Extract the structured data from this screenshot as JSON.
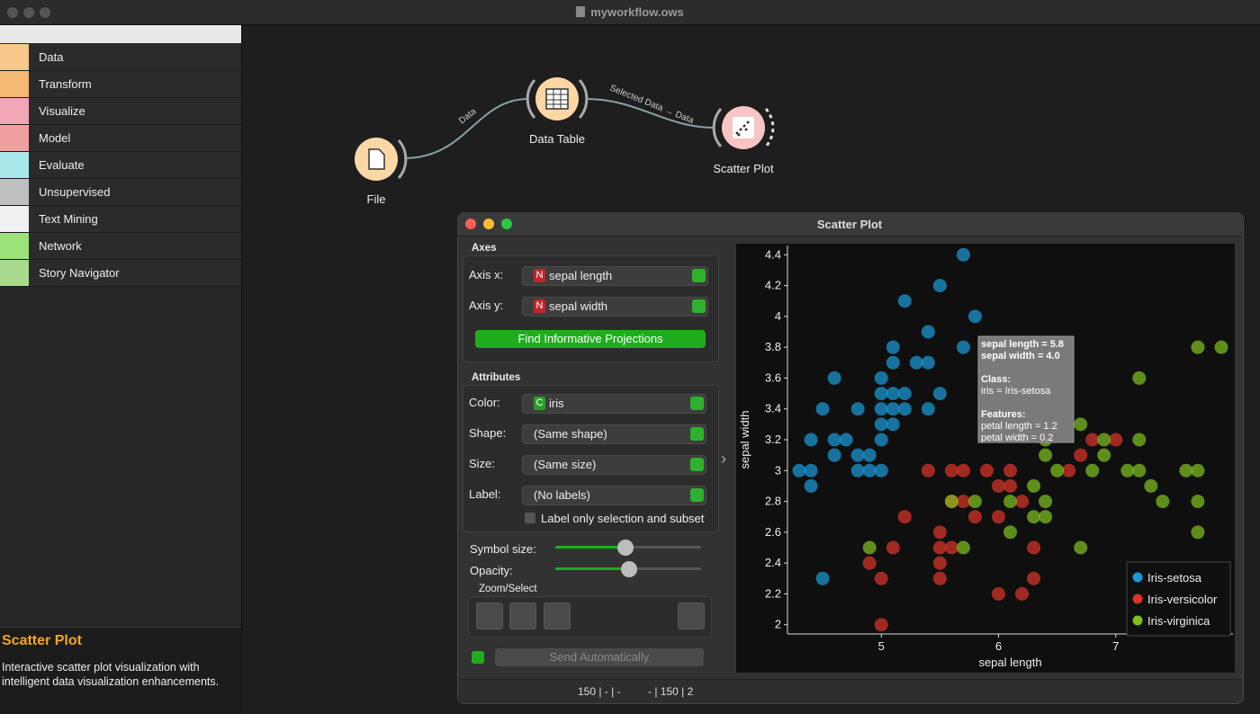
{
  "window": {
    "title": "myworkflow.ows"
  },
  "sidebar": {
    "categories": [
      "Data",
      "Transform",
      "Visualize",
      "Model",
      "Evaluate",
      "Unsupervised",
      "Text Mining",
      "Network",
      "Story Navigator"
    ],
    "help": {
      "title": "Scatter Plot",
      "text": "Interactive scatter plot visualization with intelligent data visualization enhancements."
    }
  },
  "workflow": {
    "nodes": [
      {
        "label": "File"
      },
      {
        "label": "Data Table"
      },
      {
        "label": "Scatter Plot"
      }
    ],
    "links": [
      {
        "label": "Data"
      },
      {
        "label": "Selected Data → Data"
      }
    ]
  },
  "dialog": {
    "title": "Scatter Plot",
    "axes": {
      "heading": "Axes",
      "x_label": "Axis x:",
      "x_badge": "N",
      "x_value": "sepal length",
      "y_label": "Axis y:",
      "y_badge": "N",
      "y_value": "sepal width",
      "button": "Find Informative Projections"
    },
    "attributes": {
      "heading": "Attributes",
      "color_label": "Color:",
      "color_badge": "C",
      "color_value": "iris",
      "shape_label": "Shape:",
      "shape_value": "(Same shape)",
      "size_label": "Size:",
      "size_value": "(Same size)",
      "label_label": "Label:",
      "label_value": "(No labels)",
      "checkbox": "Label only selection and subset"
    },
    "symbol_size": "Symbol size:",
    "opacity": "Opacity:",
    "zoom_select": "Zoom/Select",
    "send": "Send Automatically",
    "status": {
      "input": "150 | - | -",
      "output": "- | 150 | 2"
    }
  },
  "chart_data": {
    "type": "scatter",
    "x_label": "sepal length",
    "y_label": "sepal width",
    "xlim": [
      4.2,
      8.0
    ],
    "ylim": [
      1.94,
      4.46
    ],
    "xticks": [
      5,
      6,
      7
    ],
    "yticks": [
      2,
      2.2,
      2.4,
      2.6,
      2.8,
      3,
      3.2,
      3.4,
      3.6,
      3.8,
      4,
      4.2,
      4.4
    ],
    "legend": "bottom-right",
    "tooltip": [
      "sepal length = 5.8",
      "sepal width = 4.0",
      "Class:",
      "iris = Iris-setosa",
      "Features:",
      "petal length = 1.2",
      "petal width = 0.2"
    ],
    "series": [
      {
        "name": "Iris-setosa",
        "color": "#1a9ad6",
        "x": [
          5.7,
          5.5,
          5.2,
          5.8,
          5.4,
          5.1,
          5.7,
          5.1,
          5.3,
          5.4,
          4.6,
          5.0,
          5.0,
          5.1,
          5.2,
          5.5,
          4.5,
          4.8,
          5.0,
          5.1,
          5.2,
          5.4,
          5.0,
          5.1,
          4.4,
          4.6,
          4.7,
          5.0,
          4.6,
          4.8,
          4.9,
          4.3,
          4.4,
          4.8,
          4.9,
          5.0,
          4.4,
          4.5
        ],
        "values": [
          4.4,
          4.2,
          4.1,
          4.0,
          3.9,
          3.8,
          3.8,
          3.7,
          3.7,
          3.7,
          3.6,
          3.6,
          3.5,
          3.5,
          3.5,
          3.5,
          3.4,
          3.4,
          3.4,
          3.4,
          3.4,
          3.4,
          3.3,
          3.3,
          3.2,
          3.2,
          3.2,
          3.2,
          3.1,
          3.1,
          3.1,
          3.0,
          3.0,
          3.0,
          3.0,
          3.0,
          2.9,
          2.3
        ]
      },
      {
        "name": "Iris-versicolor",
        "color": "#d8342a",
        "x": [
          6.8,
          7.0,
          6.7,
          5.4,
          5.6,
          5.7,
          5.9,
          6.1,
          6.6,
          6.0,
          6.1,
          5.6,
          5.7,
          6.2,
          5.2,
          5.8,
          6.0,
          5.5,
          5.1,
          5.5,
          5.6,
          6.3,
          4.9,
          5.5,
          5.0,
          5.5,
          6.3,
          6.0,
          6.2,
          5.0
        ],
        "values": [
          3.2,
          3.2,
          3.1,
          3.0,
          3.0,
          3.0,
          3.0,
          3.0,
          3.0,
          2.9,
          2.9,
          2.8,
          2.8,
          2.8,
          2.7,
          2.7,
          2.7,
          2.6,
          2.5,
          2.5,
          2.5,
          2.5,
          2.4,
          2.4,
          2.3,
          2.3,
          2.3,
          2.2,
          2.2,
          2.0
        ]
      },
      {
        "name": "Iris-virginica",
        "color": "#7fbf1e",
        "x": [
          7.7,
          7.9,
          7.2,
          6.7,
          6.4,
          6.9,
          7.2,
          6.4,
          6.9,
          6.5,
          6.8,
          7.1,
          7.2,
          7.6,
          7.7,
          7.3,
          6.3,
          5.8,
          6.1,
          6.4,
          7.4,
          7.7,
          6.3,
          6.4,
          6.1,
          7.7,
          4.9,
          5.7,
          6.7,
          5.6
        ],
        "values": [
          3.8,
          3.8,
          3.6,
          3.3,
          3.2,
          3.2,
          3.2,
          3.1,
          3.1,
          3.0,
          3.0,
          3.0,
          3.0,
          3.0,
          3.0,
          2.9,
          2.9,
          2.8,
          2.8,
          2.8,
          2.8,
          2.8,
          2.7,
          2.7,
          2.6,
          2.6,
          2.5,
          2.5,
          2.5,
          2.8
        ]
      }
    ]
  }
}
